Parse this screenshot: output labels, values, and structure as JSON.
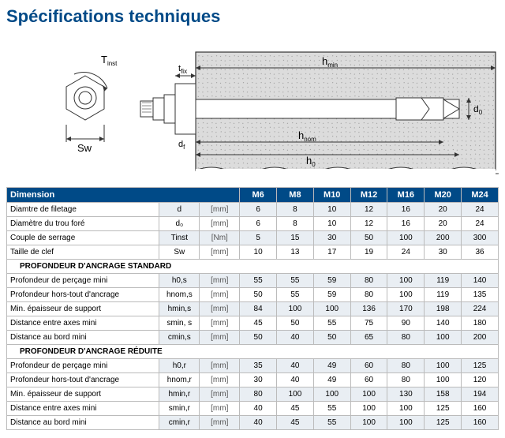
{
  "title": "Spécifications techniques",
  "colors": {
    "header": "#004a87",
    "alt_row": "#e9eef3",
    "border": "#bbbbbb",
    "text": "#000"
  },
  "diagram_labels": {
    "t_inst": "T",
    "t_inst_sub": "inst",
    "sw": "Sw",
    "t_fix": "t",
    "t_fix_sub": "fix",
    "d_f": "d",
    "d_f_sub": "f",
    "h_min": "h",
    "h_min_sub": "min",
    "h_nom": "h",
    "h_nom_sub": "nom",
    "h0": "h",
    "h0_sub": "0",
    "d0": "d",
    "d0_sub": "0"
  },
  "table": {
    "dim_header": "Dimension",
    "sizes": [
      "M6",
      "M8",
      "M10",
      "M12",
      "M16",
      "M20",
      "M24"
    ],
    "rows": [
      {
        "label": "Diamtre de filetage",
        "sym": "d",
        "unit": "[mm]",
        "vals": [
          "6",
          "8",
          "10",
          "12",
          "16",
          "20",
          "24"
        ]
      },
      {
        "label": "Diamètre du trou foré",
        "sym": "d₀",
        "unit": "[mm]",
        "vals": [
          "6",
          "8",
          "10",
          "12",
          "16",
          "20",
          "24"
        ]
      },
      {
        "label": "Couple de serrage",
        "sym": "Tinst",
        "unit": "[Nm]",
        "vals": [
          "5",
          "15",
          "30",
          "50",
          "100",
          "200",
          "300"
        ]
      },
      {
        "label": "Taille de clef",
        "sym": "Sw",
        "unit": "[mm]",
        "vals": [
          "10",
          "13",
          "17",
          "19",
          "24",
          "30",
          "36"
        ]
      }
    ],
    "section_std": "PROFONDEUR D'ANCRAGE STANDARD",
    "rows_std": [
      {
        "label": "Profondeur de perçage mini",
        "sym": "h0,s",
        "unit": "[mm]",
        "vals": [
          "55",
          "55",
          "59",
          "80",
          "100",
          "119",
          "140"
        ]
      },
      {
        "label": "Profondeur hors-tout d'ancrage",
        "sym": "hnom,s",
        "unit": "[mm]",
        "vals": [
          "50",
          "55",
          "59",
          "80",
          "100",
          "119",
          "135"
        ]
      },
      {
        "label": "Min. épaisseur de support",
        "sym": "hmin,s",
        "unit": "[mm]",
        "vals": [
          "84",
          "100",
          "100",
          "136",
          "170",
          "198",
          "224"
        ]
      },
      {
        "label": "Distance entre axes mini",
        "sym": "smin, s",
        "unit": "[mm]",
        "vals": [
          "45",
          "50",
          "55",
          "75",
          "90",
          "140",
          "180"
        ]
      },
      {
        "label": "Distance au bord mini",
        "sym": "cmin,s",
        "unit": "[mm]",
        "vals": [
          "50",
          "40",
          "50",
          "65",
          "80",
          "100",
          "200"
        ]
      }
    ],
    "section_red": "PROFONDEUR D'ANCRAGE RÉDUITE",
    "rows_red": [
      {
        "label": "Profondeur de perçage mini",
        "sym": "h0,r",
        "unit": "[mm]",
        "vals": [
          "35",
          "40",
          "49",
          "60",
          "80",
          "100",
          "125"
        ]
      },
      {
        "label": "Profondeur hors-tout d'ancrage",
        "sym": "hnom,r",
        "unit": "[mm]",
        "vals": [
          "30",
          "40",
          "49",
          "60",
          "80",
          "100",
          "120"
        ]
      },
      {
        "label": "Min. épaisseur de support",
        "sym": "hmin,r",
        "unit": "[mm]",
        "vals": [
          "80",
          "100",
          "100",
          "100",
          "130",
          "158",
          "194"
        ]
      },
      {
        "label": "Distance entre axes mini",
        "sym": "smin,r",
        "unit": "[mm]",
        "vals": [
          "40",
          "45",
          "55",
          "100",
          "100",
          "125",
          "160"
        ]
      },
      {
        "label": "Distance au bord mini",
        "sym": "cmin,r",
        "unit": "[mm]",
        "vals": [
          "40",
          "45",
          "55",
          "100",
          "100",
          "125",
          "160"
        ]
      }
    ]
  }
}
